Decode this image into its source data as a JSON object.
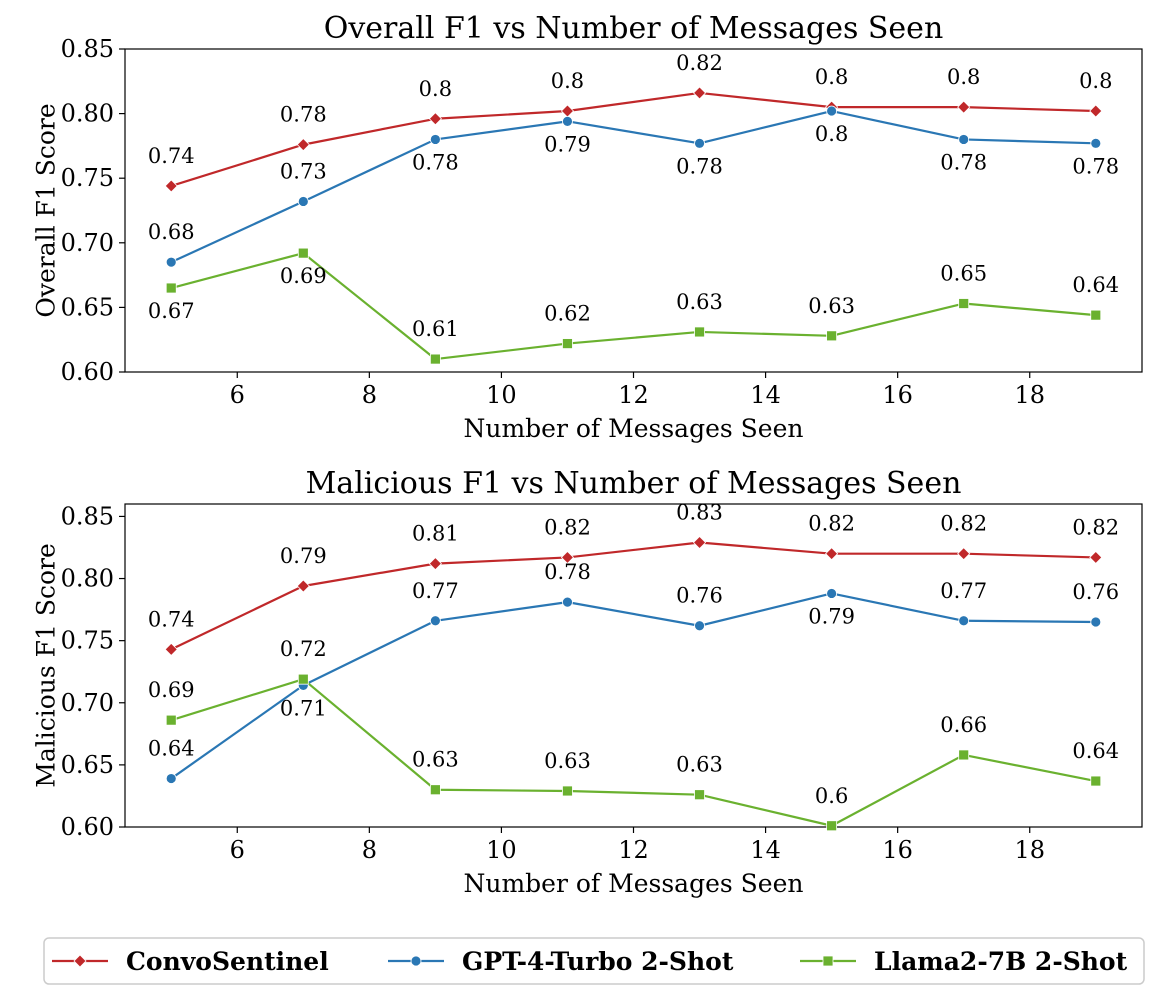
{
  "chart_data": [
    {
      "type": "line",
      "title": "Overall F1 vs Number of Messages Seen",
      "xlabel": "Number of Messages Seen",
      "ylabel": "Overall F1 Score",
      "xlim": [
        4.3,
        19.7
      ],
      "ylim": [
        0.6,
        0.85
      ],
      "xticks": [
        6,
        8,
        10,
        12,
        14,
        16,
        18
      ],
      "yticks": [
        "0.60",
        "0.65",
        "0.70",
        "0.75",
        "0.80",
        "0.85"
      ],
      "x": [
        5,
        7,
        9,
        11,
        13,
        15,
        17,
        19
      ],
      "series": [
        {
          "name": "ConvoSentinel",
          "values": [
            0.744,
            0.776,
            0.796,
            0.802,
            0.816,
            0.805,
            0.805,
            0.802
          ],
          "labels": [
            "0.74",
            "0.78",
            "0.8",
            "0.8",
            "0.82",
            "0.8",
            "0.8",
            "0.8"
          ]
        },
        {
          "name": "GPT-4-Turbo 2-Shot",
          "values": [
            0.685,
            0.732,
            0.78,
            0.794,
            0.777,
            0.802,
            0.78,
            0.777
          ],
          "labels": [
            "0.68",
            "0.73",
            "0.78",
            "0.79",
            "0.78",
            "0.8",
            "0.78",
            "0.78"
          ]
        },
        {
          "name": "Llama2-7B 2-Shot",
          "values": [
            0.665,
            0.692,
            0.61,
            0.622,
            0.631,
            0.628,
            0.653,
            0.644
          ],
          "labels": [
            "0.67",
            "0.69",
            "0.61",
            "0.62",
            "0.63",
            "0.63",
            "0.65",
            "0.64"
          ]
        }
      ]
    },
    {
      "type": "line",
      "title": "Malicious F1 vs Number of Messages Seen",
      "xlabel": "Number of Messages Seen",
      "ylabel": "Malicious F1 Score",
      "xlim": [
        4.3,
        19.7
      ],
      "ylim": [
        0.6,
        0.86
      ],
      "xticks": [
        6,
        8,
        10,
        12,
        14,
        16,
        18
      ],
      "yticks": [
        "0.60",
        "0.65",
        "0.70",
        "0.75",
        "0.80",
        "0.85"
      ],
      "x": [
        5,
        7,
        9,
        11,
        13,
        15,
        17,
        19
      ],
      "series": [
        {
          "name": "ConvoSentinel",
          "values": [
            0.743,
            0.794,
            0.812,
            0.817,
            0.829,
            0.82,
            0.82,
            0.817
          ],
          "labels": [
            "0.74",
            "0.79",
            "0.81",
            "0.82",
            "0.83",
            "0.82",
            "0.82",
            "0.82"
          ]
        },
        {
          "name": "GPT-4-Turbo 2-Shot",
          "values": [
            0.639,
            0.714,
            0.766,
            0.781,
            0.762,
            0.788,
            0.766,
            0.765
          ],
          "labels": [
            "0.64",
            "0.71",
            "0.77",
            "0.78",
            "0.76",
            "0.79",
            "0.77",
            "0.76"
          ]
        },
        {
          "name": "Llama2-7B 2-Shot",
          "values": [
            0.686,
            0.719,
            0.63,
            0.629,
            0.626,
            0.601,
            0.658,
            0.637
          ],
          "labels": [
            "0.69",
            "0.72",
            "0.63",
            "0.63",
            "0.63",
            "0.6",
            "0.66",
            "0.64"
          ]
        }
      ]
    }
  ],
  "legend": {
    "placement": "bottom",
    "entries": [
      {
        "name": "ConvoSentinel",
        "color": "#c0282a",
        "marker": "diamond"
      },
      {
        "name": "GPT-4-Turbo 2-Shot",
        "color": "#2a77b4",
        "marker": "circle"
      },
      {
        "name": "Llama2-7B 2-Shot",
        "color": "#6ab12f",
        "marker": "square"
      }
    ]
  }
}
